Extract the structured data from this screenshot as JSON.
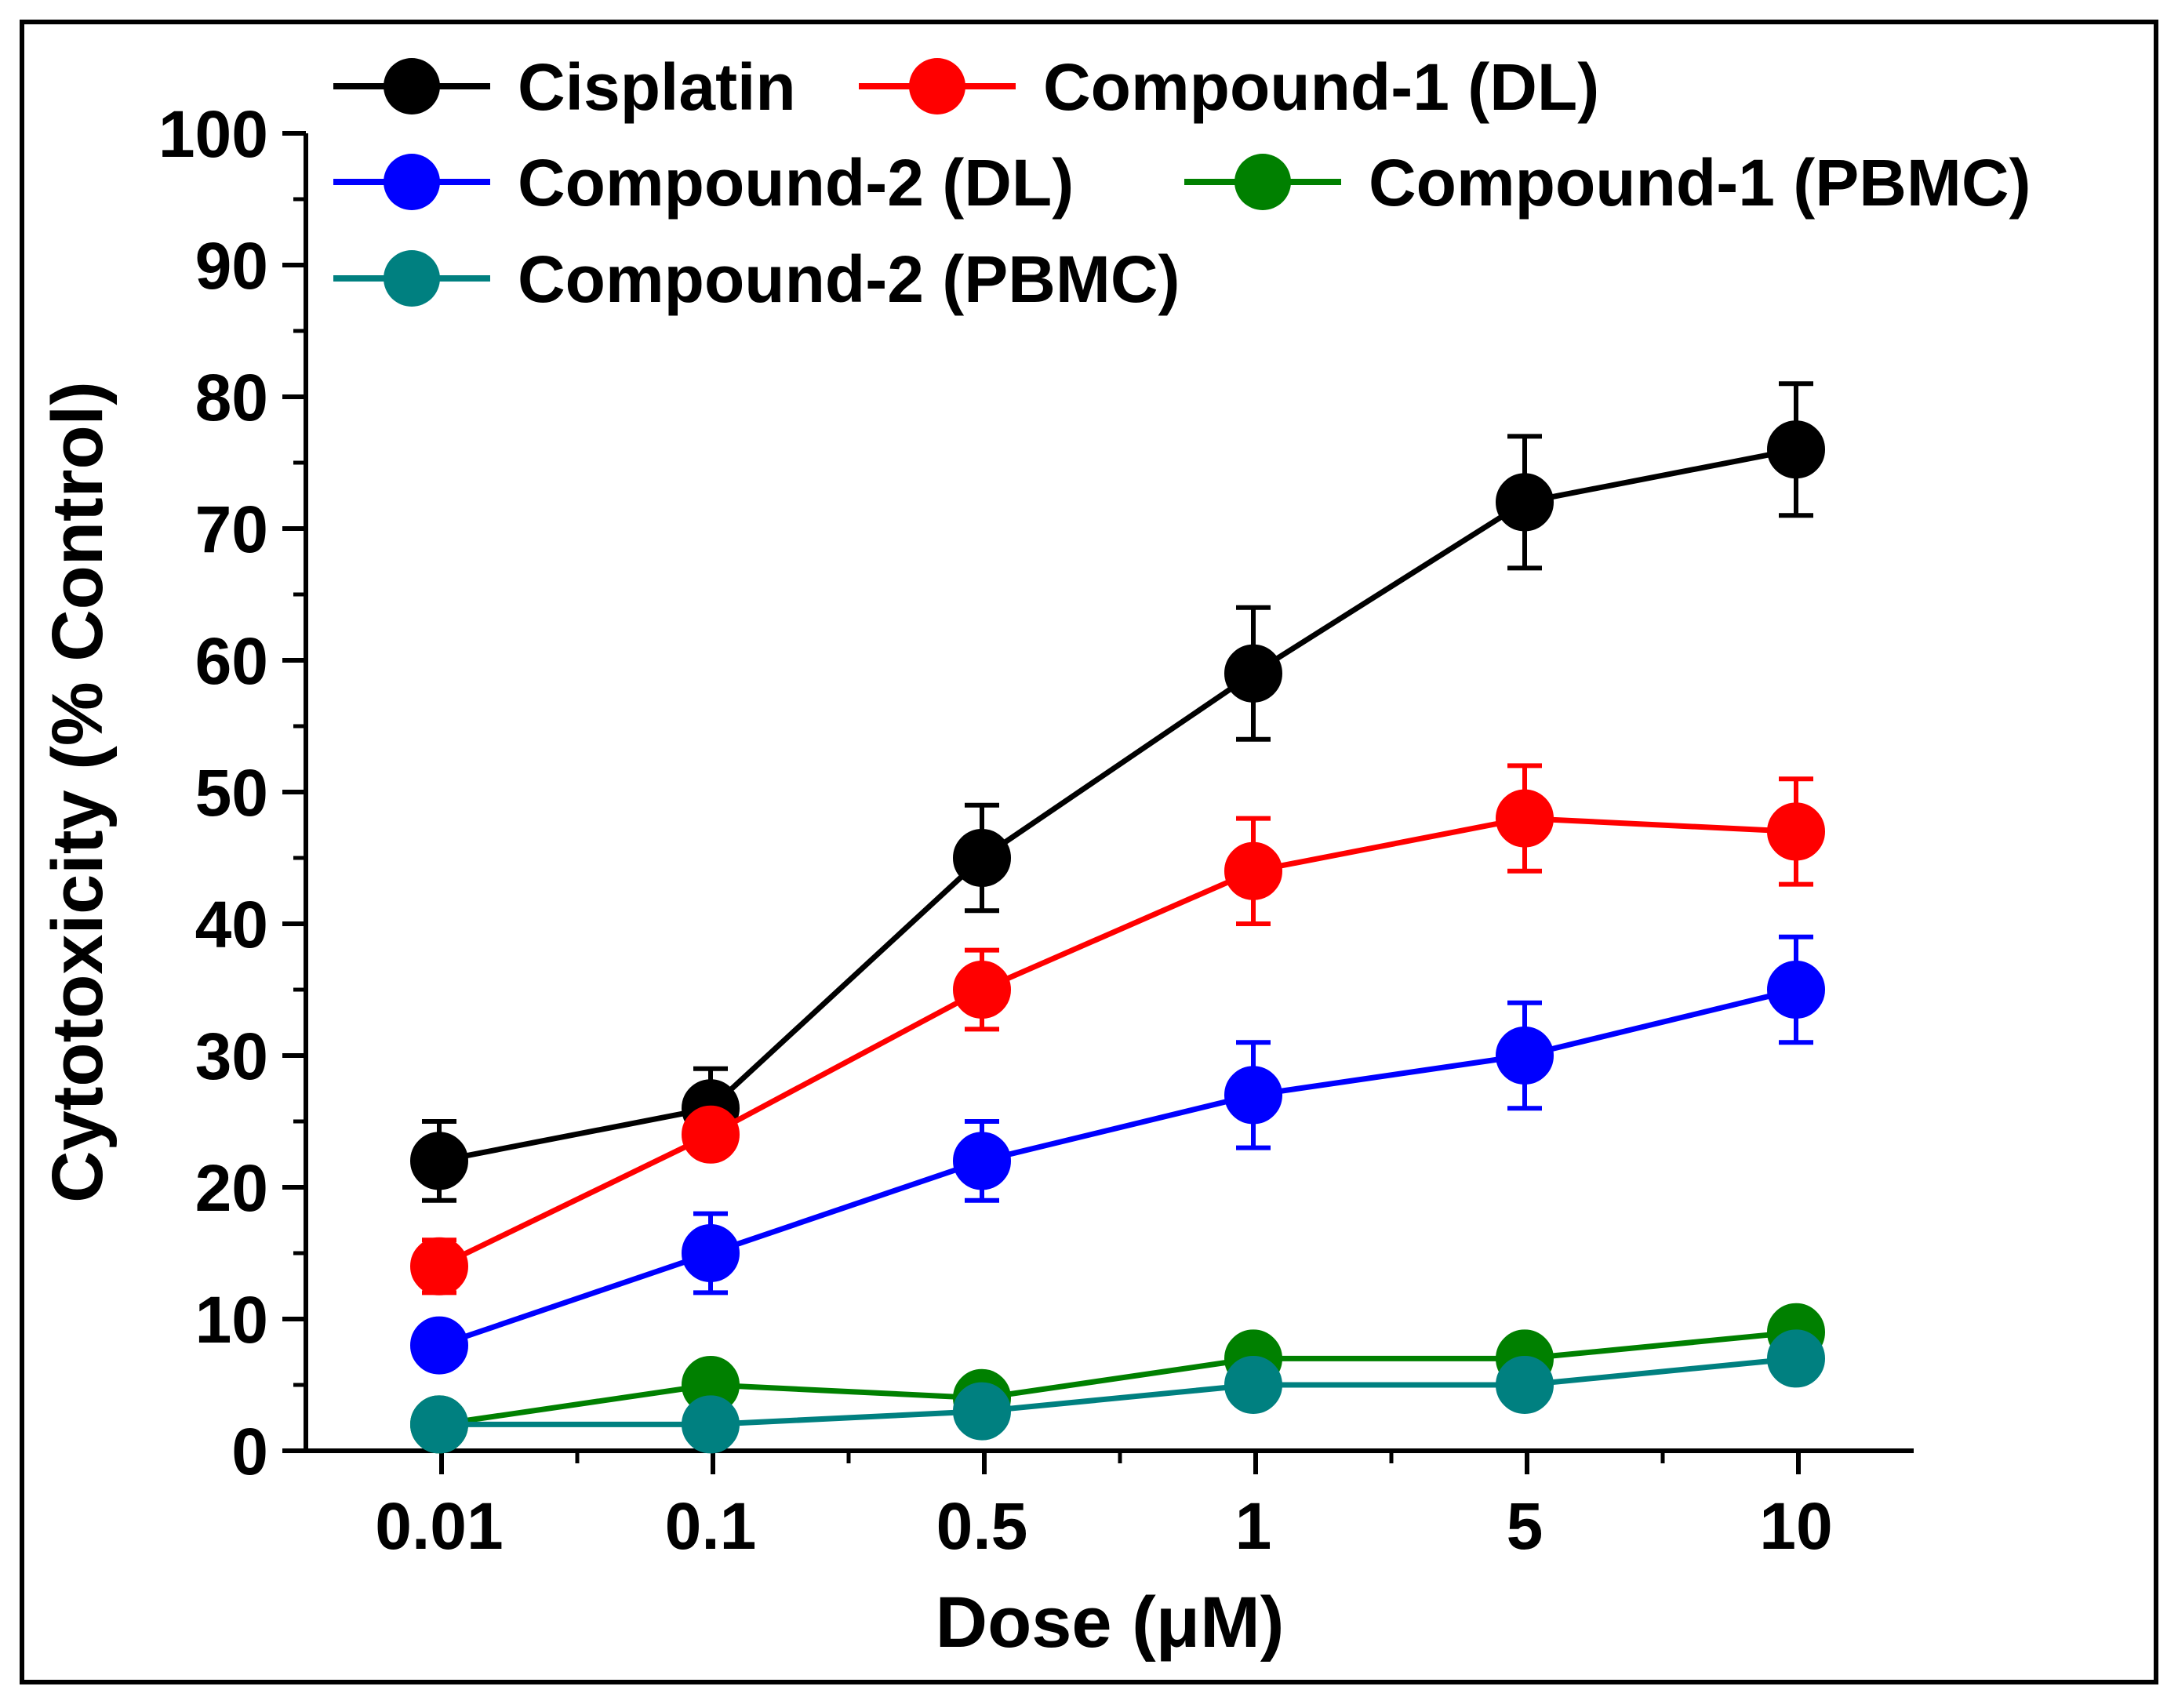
{
  "chart_data": {
    "type": "line",
    "xlabel": "Dose (μM)",
    "ylabel": "Cytotoxicity (% Control)",
    "categories": [
      "0.01",
      "0.1",
      "0.5",
      "1",
      "5",
      "10"
    ],
    "ylim": [
      0,
      100
    ],
    "yticks": [
      "0",
      "10",
      "20",
      "30",
      "40",
      "50",
      "60",
      "70",
      "80",
      "90",
      "100"
    ],
    "series": [
      {
        "name": "Cisplatin",
        "color": "#000000",
        "values": [
          22,
          26,
          45,
          59,
          72,
          76
        ],
        "errors": [
          3,
          3,
          4,
          5,
          5,
          5
        ]
      },
      {
        "name": "Compound-1 (DL)",
        "color": "#ff0000",
        "values": [
          14,
          24,
          35,
          44,
          48,
          47
        ],
        "errors": [
          2,
          1,
          3,
          4,
          4,
          4
        ]
      },
      {
        "name": "Compound-2 (DL)",
        "color": "#0000ff",
        "values": [
          8,
          15,
          22,
          27,
          30,
          35
        ],
        "errors": [
          1,
          3,
          3,
          4,
          4,
          4
        ]
      },
      {
        "name": "Compound-1 (PBMC)",
        "color": "#008000",
        "values": [
          2,
          5,
          4,
          7,
          7,
          9
        ],
        "errors": [
          0.5,
          0.5,
          0.5,
          1,
          1,
          1
        ]
      },
      {
        "name": "Compound-2 (PBMC)",
        "color": "#008080",
        "values": [
          2,
          2,
          3,
          5,
          5,
          7
        ],
        "errors": [
          0.5,
          0.5,
          0.5,
          1,
          1,
          1.5
        ]
      }
    ],
    "legend_position": "top-left",
    "grid": false
  }
}
